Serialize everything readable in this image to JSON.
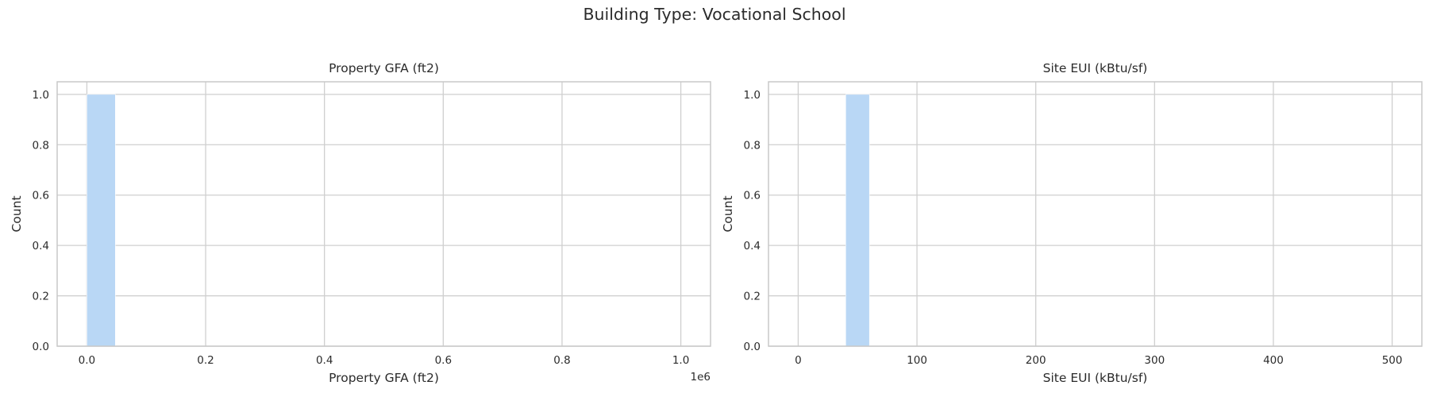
{
  "figure": {
    "suptitle": "Building Type: Vocational School"
  },
  "chart_data": [
    {
      "type": "bar",
      "title": "Property GFA (ft2)",
      "xlabel": "Property GFA (ft2)",
      "ylabel": "Count",
      "offset_text": "1e6",
      "xlim": [
        -0.05,
        1.05
      ],
      "ylim": [
        0,
        1.05
      ],
      "xticks": [
        0.0,
        0.2,
        0.4,
        0.6,
        0.8,
        1.0
      ],
      "xtick_labels": [
        "0.0",
        "0.2",
        "0.4",
        "0.6",
        "0.8",
        "1.0"
      ],
      "yticks": [
        0.0,
        0.2,
        0.4,
        0.6,
        0.8,
        1.0
      ],
      "ytick_labels": [
        "0.0",
        "0.2",
        "0.4",
        "0.6",
        "0.8",
        "1.0"
      ],
      "grid": true,
      "bars": [
        {
          "x0": 0.0,
          "x1": 0.048,
          "count": 1
        }
      ],
      "bar_color": "#b9d7f5"
    },
    {
      "type": "bar",
      "title": "Site EUI (kBtu/sf)",
      "xlabel": "Site EUI (kBtu/sf)",
      "ylabel": "Count",
      "xlim": [
        -25,
        525
      ],
      "ylim": [
        0,
        1.05
      ],
      "xticks": [
        0,
        100,
        200,
        300,
        400,
        500
      ],
      "xtick_labels": [
        "0",
        "100",
        "200",
        "300",
        "400",
        "500"
      ],
      "yticks": [
        0.0,
        0.2,
        0.4,
        0.6,
        0.8,
        1.0
      ],
      "ytick_labels": [
        "0.0",
        "0.2",
        "0.4",
        "0.6",
        "0.8",
        "1.0"
      ],
      "grid": true,
      "bars": [
        {
          "x0": 40,
          "x1": 60,
          "count": 1
        }
      ],
      "bar_color": "#b9d7f5"
    }
  ]
}
